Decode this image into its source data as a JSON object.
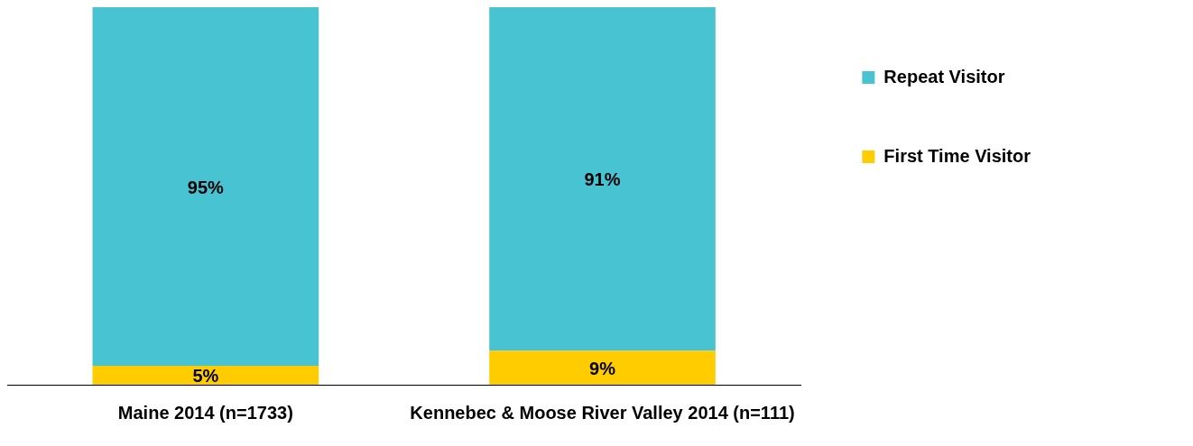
{
  "chart_data": {
    "type": "bar",
    "stacked": true,
    "categories": [
      "Maine 2014 (n=1733)",
      "Kennebec & Moose River Valley 2014 (n=111)"
    ],
    "series": [
      {
        "name": "First Time Visitor",
        "color": "#ffcc00",
        "values": [
          5,
          9
        ],
        "value_labels": [
          "5%",
          "9%"
        ]
      },
      {
        "name": "Repeat Visitor",
        "color": "#47c3d2",
        "values": [
          95,
          91
        ],
        "value_labels": [
          "95%",
          "91%"
        ]
      }
    ],
    "tick_labels": "x",
    "legend": "right"
  }
}
